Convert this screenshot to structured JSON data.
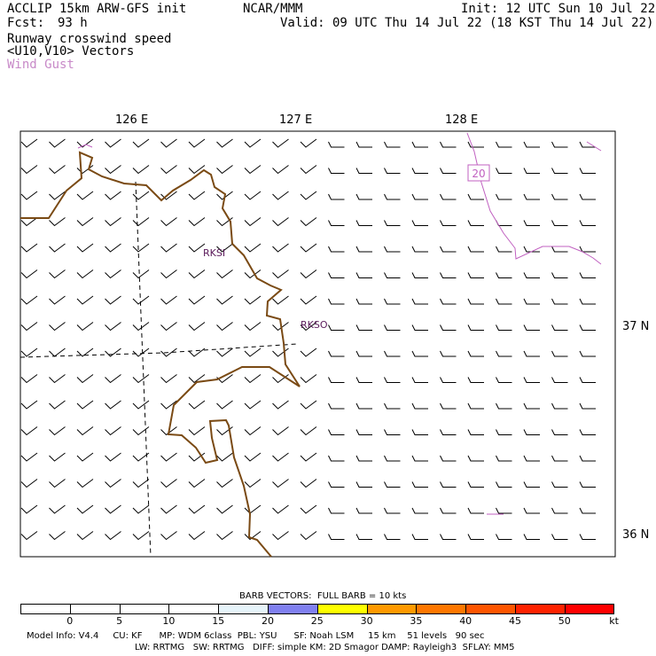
{
  "header": {
    "model": "ACCLIP 15km ARW-GFS init",
    "center": "NCAR/MMM",
    "init": "Init: 12 UTC Sun 10 Jul 22",
    "fcst_label": "Fcst:",
    "fcst_value": "93 h",
    "valid": "Valid: 09 UTC Thu 14 Jul 22 (18 KST Thu 14 Jul 22)",
    "field_1": "Runway crosswind speed",
    "field_2": "<U10,V10> Vectors",
    "field_3": "Wind Gust"
  },
  "map": {
    "lon_labels": [
      "126 E",
      "127 E",
      "128 E"
    ],
    "lat_labels": [
      "37 N",
      "36 N"
    ],
    "stations": [
      "RKSI",
      "RKSO"
    ],
    "gust_contour_label": "20",
    "colors": {
      "coast": "#7a4a14",
      "gust": "#c060c0",
      "station": "#5a1a5a",
      "grid": "#000000"
    }
  },
  "colorbar": {
    "title": "BARB VECTORS:  FULL BARB = 10 kts",
    "ticks": [
      "0",
      "5",
      "10",
      "15",
      "20",
      "25",
      "30",
      "35",
      "40",
      "45",
      "50",
      "kt"
    ],
    "colors": [
      "#ffffff",
      "#ffffff",
      "#ffffff",
      "#ffffff",
      "#e6f4fa",
      "#8080f0",
      "#ffff00",
      "#ff9900",
      "#ff7700",
      "#ff5500",
      "#ff2200",
      "#ff0000",
      "#ff0000",
      "#ff0000"
    ]
  },
  "footer": {
    "line1": "Model Info: V4.4     CU: KF      MP: WDM 6class  PBL: YSU      SF: Noah LSM     15 km    51 levels   90 sec",
    "line2": "LW: RRTMG   SW: RRTMG   DIFF: simple KM: 2D Smagor DAMP: Rayleigh3  SFLAY: MM5"
  }
}
